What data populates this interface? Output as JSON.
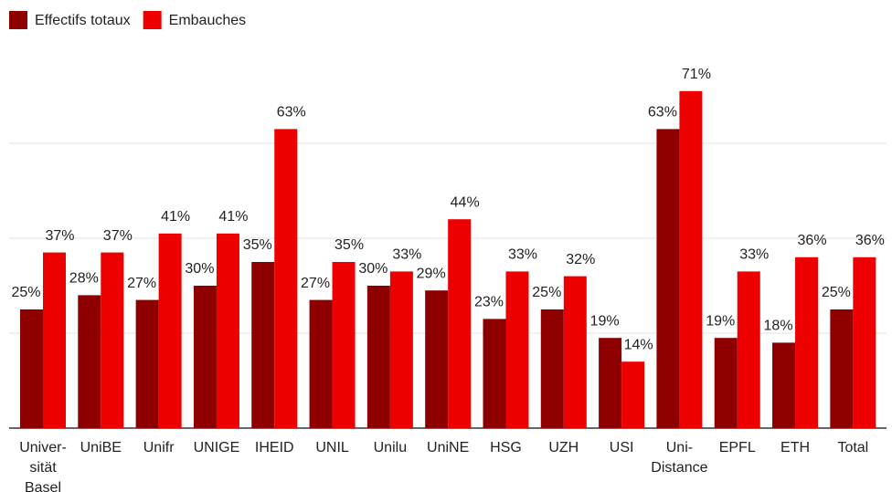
{
  "chart_data": {
    "type": "bar",
    "categories": [
      "Univer-\nsität\nBasel",
      "UniBE",
      "Unifr",
      "UNIGE",
      "IHEID",
      "UNIL",
      "Unilu",
      "UniNE",
      "HSG",
      "UZH",
      "USI",
      "Uni-\nDistance",
      "EPFL",
      "ETH",
      "Total"
    ],
    "series": [
      {
        "name": "Effectifs totaux",
        "color": "#8e0000",
        "values": [
          25,
          28,
          27,
          30,
          35,
          27,
          30,
          29,
          23,
          25,
          19,
          63,
          19,
          18,
          25
        ],
        "value_labels": [
          "25%",
          "28%",
          "27%",
          "30%",
          "35%",
          "27%",
          "30%",
          "29%",
          "23%",
          "25%",
          "19%",
          "63%",
          "19%",
          "18%",
          "25%"
        ]
      },
      {
        "name": "Embauches",
        "color": "#ee0000",
        "values": [
          37,
          37,
          41,
          41,
          63,
          35,
          33,
          44,
          33,
          32,
          14,
          71,
          33,
          36,
          36
        ],
        "value_labels": [
          "37%",
          "37%",
          "41%",
          "41%",
          "63%",
          "35%",
          "33%",
          "44%",
          "33%",
          "32%",
          "14%",
          "71%",
          "33%",
          "36%",
          "36%"
        ]
      }
    ],
    "ylim": [
      0,
      80
    ],
    "yticks": [
      0,
      20,
      40,
      60
    ],
    "grid": true,
    "legend": "top-left"
  }
}
